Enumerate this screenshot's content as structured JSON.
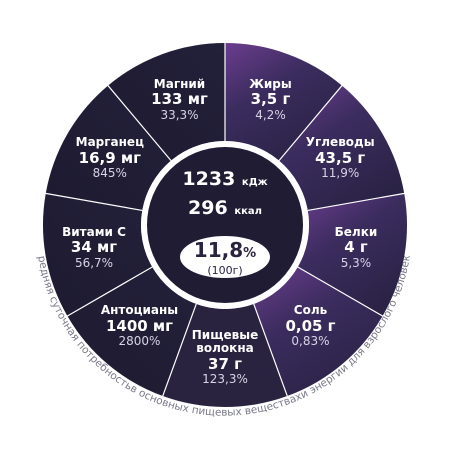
{
  "energy": {
    "kj_value": "1233",
    "kj_unit": "кДж",
    "kcal_value": "296",
    "kcal_unit": "ккал",
    "share_value": "11,8",
    "share_unit": "%",
    "share_basis": "(100г)"
  },
  "caption": "Средняя суточная потребностьв основных пищевых веществахи энергии для взрослого человека",
  "segments": [
    {
      "id": "fats",
      "name": "Жиры",
      "value": "3,5 г",
      "percent": "4,2%"
    },
    {
      "id": "carbs",
      "name": "Углеводы",
      "value": "43,5 г",
      "percent": "11,9%"
    },
    {
      "id": "proteins",
      "name": "Белки",
      "value": "4 г",
      "percent": "5,3%"
    },
    {
      "id": "salt",
      "name": "Соль",
      "value": "0,05 г",
      "percent": "0,83%"
    },
    {
      "id": "fiber",
      "name": [
        "Пищевые",
        "волокна"
      ],
      "value": "37 г",
      "percent": "123,3%"
    },
    {
      "id": "anthocyan",
      "name": "Антоцианы",
      "value": "1400 мг",
      "percent": "2800%"
    },
    {
      "id": "vitamin-c",
      "name": "Витами С",
      "value": "34 мг",
      "percent": "56,7%"
    },
    {
      "id": "manganese",
      "name": "Марганец",
      "value": "16,9 мг",
      "percent": "845%"
    },
    {
      "id": "magnesium",
      "name": "Магний",
      "value": "133 мг",
      "percent": "33,3%"
    }
  ],
  "colors": {
    "segment_dark": "#1e1b33",
    "segment_light": "#3a2d5c",
    "accent_start": "#6a3a8c",
    "divider": "#ffffff",
    "caption": "#7a7a8a"
  }
}
